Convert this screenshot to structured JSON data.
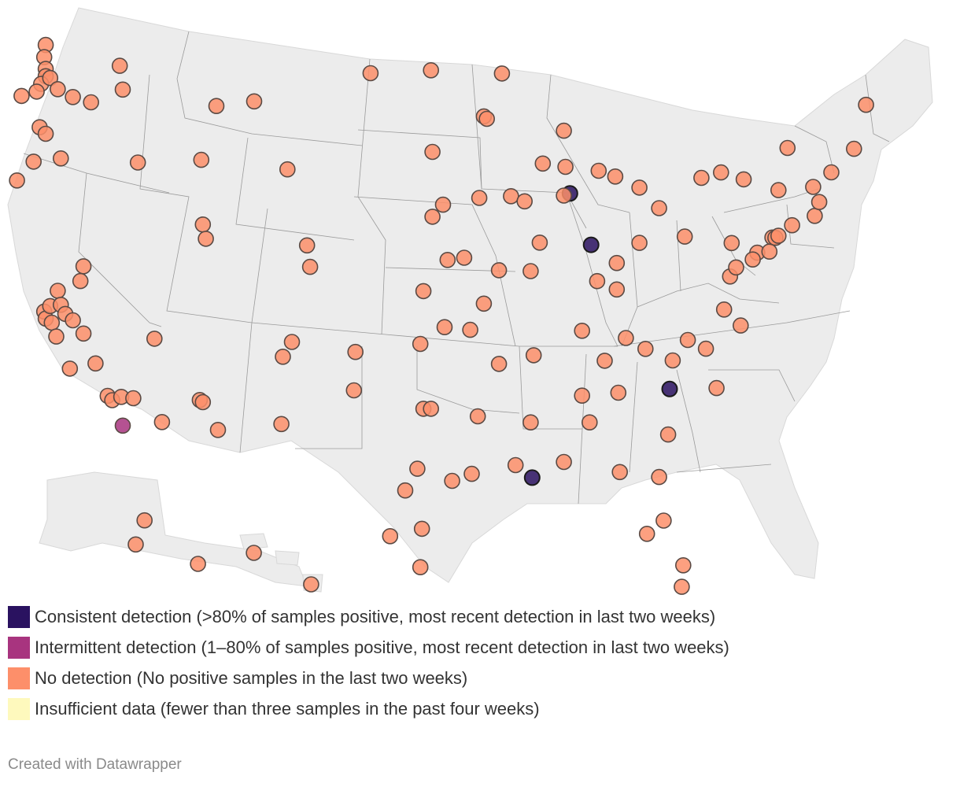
{
  "legend": [
    {
      "label": "Consistent detection (>80% of samples positive, most recent detection in last two weeks)",
      "color": "#2a1260"
    },
    {
      "label": "Intermittent detection (1–80% of samples positive, most recent detection in last two weeks)",
      "color": "#a8347f"
    },
    {
      "label": "No detection (No positive samples in the last two weeks)",
      "color": "#fd8f6a"
    },
    {
      "label": "Insufficient data (fewer than three samples in the past four weeks)",
      "color": "#fef9bd"
    }
  ],
  "credit": "Created with Datawrapper",
  "map": {
    "land_color": "#ececec",
    "border_color": "#9a9a9a",
    "sites": [
      {
        "lon": -122.3,
        "lat": 48.9,
        "s": "none"
      },
      {
        "lon": -122.4,
        "lat": 48.4,
        "s": "none"
      },
      {
        "lon": -122.3,
        "lat": 47.9,
        "s": "none"
      },
      {
        "lon": -122.3,
        "lat": 47.6,
        "s": "none"
      },
      {
        "lon": -122.6,
        "lat": 47.3,
        "s": "none"
      },
      {
        "lon": -122.9,
        "lat": 47.0,
        "s": "none"
      },
      {
        "lon": -123.9,
        "lat": 46.9,
        "s": "none"
      },
      {
        "lon": -122.0,
        "lat": 47.5,
        "s": "none"
      },
      {
        "lon": -121.5,
        "lat": 47.0,
        "s": "none"
      },
      {
        "lon": -120.5,
        "lat": 46.6,
        "s": "none"
      },
      {
        "lon": -119.3,
        "lat": 46.3,
        "s": "none"
      },
      {
        "lon": -117.4,
        "lat": 47.7,
        "s": "none"
      },
      {
        "lon": -117.2,
        "lat": 46.7,
        "s": "none"
      },
      {
        "lon": -124.2,
        "lat": 43.4,
        "s": "none"
      },
      {
        "lon": -123.1,
        "lat": 44.1,
        "s": "none"
      },
      {
        "lon": -122.7,
        "lat": 45.5,
        "s": "none"
      },
      {
        "lon": -122.3,
        "lat": 45.2,
        "s": "none"
      },
      {
        "lon": -121.3,
        "lat": 44.1,
        "s": "none"
      },
      {
        "lon": -116.2,
        "lat": 43.6,
        "s": "none"
      },
      {
        "lon": -112.0,
        "lat": 43.5,
        "s": "none"
      },
      {
        "lon": -111.0,
        "lat": 45.7,
        "s": "none"
      },
      {
        "lon": -108.5,
        "lat": 45.8,
        "s": "none"
      },
      {
        "lon": -106.3,
        "lat": 42.9,
        "s": "none"
      },
      {
        "lon": -111.9,
        "lat": 40.8,
        "s": "none"
      },
      {
        "lon": -111.7,
        "lat": 40.2,
        "s": "none"
      },
      {
        "lon": -119.8,
        "lat": 39.5,
        "s": "none"
      },
      {
        "lon": -115.1,
        "lat": 36.2,
        "s": "none"
      },
      {
        "lon": -122.4,
        "lat": 37.8,
        "s": "none"
      },
      {
        "lon": -122.3,
        "lat": 37.5,
        "s": "none"
      },
      {
        "lon": -121.9,
        "lat": 37.3,
        "s": "none"
      },
      {
        "lon": -122.0,
        "lat": 38.0,
        "s": "none"
      },
      {
        "lon": -121.5,
        "lat": 38.6,
        "s": "none"
      },
      {
        "lon": -121.3,
        "lat": 38.0,
        "s": "none"
      },
      {
        "lon": -120.0,
        "lat": 38.9,
        "s": "none"
      },
      {
        "lon": -121.0,
        "lat": 37.6,
        "s": "none"
      },
      {
        "lon": -120.5,
        "lat": 37.3,
        "s": "none"
      },
      {
        "lon": -119.8,
        "lat": 36.7,
        "s": "none"
      },
      {
        "lon": -121.6,
        "lat": 36.7,
        "s": "none"
      },
      {
        "lon": -120.7,
        "lat": 35.3,
        "s": "none"
      },
      {
        "lon": -119.0,
        "lat": 35.4,
        "s": "none"
      },
      {
        "lon": -118.2,
        "lat": 34.0,
        "s": "none"
      },
      {
        "lon": -117.9,
        "lat": 33.8,
        "s": "none"
      },
      {
        "lon": -117.3,
        "lat": 33.9,
        "s": "none"
      },
      {
        "lon": -116.5,
        "lat": 33.8,
        "s": "none"
      },
      {
        "lon": -117.2,
        "lat": 32.7,
        "s": "intermittent"
      },
      {
        "lon": -114.6,
        "lat": 32.7,
        "s": "none"
      },
      {
        "lon": -112.1,
        "lat": 33.5,
        "s": "none"
      },
      {
        "lon": -111.9,
        "lat": 33.4,
        "s": "none"
      },
      {
        "lon": -110.9,
        "lat": 32.2,
        "s": "none"
      },
      {
        "lon": -106.6,
        "lat": 35.1,
        "s": "none"
      },
      {
        "lon": -106.0,
        "lat": 35.7,
        "s": "none"
      },
      {
        "lon": -106.7,
        "lat": 32.3,
        "s": "none"
      },
      {
        "lon": -104.8,
        "lat": 38.8,
        "s": "none"
      },
      {
        "lon": -105.0,
        "lat": 39.7,
        "s": "none"
      },
      {
        "lon": -101.8,
        "lat": 35.2,
        "s": "none"
      },
      {
        "lon": -101.9,
        "lat": 33.6,
        "s": "none"
      },
      {
        "lon": -97.3,
        "lat": 32.8,
        "s": "none"
      },
      {
        "lon": -96.8,
        "lat": 32.8,
        "s": "none"
      },
      {
        "lon": -97.7,
        "lat": 30.3,
        "s": "none"
      },
      {
        "lon": -98.5,
        "lat": 29.4,
        "s": "none"
      },
      {
        "lon": -95.4,
        "lat": 29.8,
        "s": "none"
      },
      {
        "lon": -94.1,
        "lat": 30.1,
        "s": "none"
      },
      {
        "lon": -97.4,
        "lat": 27.8,
        "s": "none"
      },
      {
        "lon": -99.5,
        "lat": 27.5,
        "s": "none"
      },
      {
        "lon": -97.5,
        "lat": 26.2,
        "s": "none"
      },
      {
        "lon": -97.5,
        "lat": 35.5,
        "s": "none"
      },
      {
        "lon": -95.9,
        "lat": 36.2,
        "s": "none"
      },
      {
        "lon": -97.3,
        "lat": 37.7,
        "s": "none"
      },
      {
        "lon": -95.7,
        "lat": 39.0,
        "s": "none"
      },
      {
        "lon": -94.6,
        "lat": 39.1,
        "s": "none"
      },
      {
        "lon": -96.0,
        "lat": 41.3,
        "s": "none"
      },
      {
        "lon": -96.7,
        "lat": 40.8,
        "s": "none"
      },
      {
        "lon": -96.7,
        "lat": 43.5,
        "s": "none"
      },
      {
        "lon": -100.8,
        "lat": 46.8,
        "s": "none"
      },
      {
        "lon": -96.8,
        "lat": 46.9,
        "s": "none"
      },
      {
        "lon": -93.3,
        "lat": 45.0,
        "s": "none"
      },
      {
        "lon": -93.1,
        "lat": 44.9,
        "s": "none"
      },
      {
        "lon": -92.1,
        "lat": 46.8,
        "s": "none"
      },
      {
        "lon": -93.6,
        "lat": 41.6,
        "s": "none"
      },
      {
        "lon": -91.5,
        "lat": 41.7,
        "s": "none"
      },
      {
        "lon": -90.6,
        "lat": 41.5,
        "s": "none"
      },
      {
        "lon": -89.4,
        "lat": 43.1,
        "s": "none"
      },
      {
        "lon": -87.9,
        "lat": 43.0,
        "s": "none"
      },
      {
        "lon": -88.0,
        "lat": 44.5,
        "s": "none"
      },
      {
        "lon": -87.6,
        "lat": 41.9,
        "s": "consistent"
      },
      {
        "lon": -88.0,
        "lat": 41.8,
        "s": "none"
      },
      {
        "lon": -89.6,
        "lat": 39.8,
        "s": "none"
      },
      {
        "lon": -90.2,
        "lat": 38.6,
        "s": "none"
      },
      {
        "lon": -92.3,
        "lat": 38.6,
        "s": "none"
      },
      {
        "lon": -93.3,
        "lat": 37.2,
        "s": "none"
      },
      {
        "lon": -92.3,
        "lat": 34.7,
        "s": "none"
      },
      {
        "lon": -94.2,
        "lat": 36.1,
        "s": "none"
      },
      {
        "lon": -90.0,
        "lat": 35.1,
        "s": "none"
      },
      {
        "lon": -91.2,
        "lat": 30.5,
        "s": "none"
      },
      {
        "lon": -90.1,
        "lat": 30.0,
        "s": "consistent"
      },
      {
        "lon": -93.7,
        "lat": 32.5,
        "s": "none"
      },
      {
        "lon": -90.2,
        "lat": 32.3,
        "s": "none"
      },
      {
        "lon": -88.0,
        "lat": 30.7,
        "s": "none"
      },
      {
        "lon": -86.8,
        "lat": 33.5,
        "s": "none"
      },
      {
        "lon": -86.3,
        "lat": 32.4,
        "s": "none"
      },
      {
        "lon": -84.4,
        "lat": 33.7,
        "s": "none"
      },
      {
        "lon": -84.3,
        "lat": 30.4,
        "s": "none"
      },
      {
        "lon": -82.5,
        "lat": 27.9,
        "s": "none"
      },
      {
        "lon": -81.4,
        "lat": 28.5,
        "s": "none"
      },
      {
        "lon": -80.2,
        "lat": 25.8,
        "s": "none"
      },
      {
        "lon": -80.1,
        "lat": 26.7,
        "s": "none"
      },
      {
        "lon": -81.7,
        "lat": 30.3,
        "s": "none"
      },
      {
        "lon": -81.1,
        "lat": 32.1,
        "s": "none"
      },
      {
        "lon": -81.0,
        "lat": 34.0,
        "s": "consistent"
      },
      {
        "lon": -80.8,
        "lat": 35.2,
        "s": "none"
      },
      {
        "lon": -78.6,
        "lat": 35.8,
        "s": "none"
      },
      {
        "lon": -79.8,
        "lat": 36.1,
        "s": "none"
      },
      {
        "lon": -77.9,
        "lat": 34.2,
        "s": "none"
      },
      {
        "lon": -76.3,
        "lat": 36.9,
        "s": "none"
      },
      {
        "lon": -77.4,
        "lat": 37.5,
        "s": "none"
      },
      {
        "lon": -77.0,
        "lat": 38.9,
        "s": "none"
      },
      {
        "lon": -76.6,
        "lat": 39.3,
        "s": "none"
      },
      {
        "lon": -75.2,
        "lat": 40.0,
        "s": "none"
      },
      {
        "lon": -74.2,
        "lat": 40.7,
        "s": "none"
      },
      {
        "lon": -74.0,
        "lat": 40.7,
        "s": "none"
      },
      {
        "lon": -73.8,
        "lat": 40.8,
        "s": "none"
      },
      {
        "lon": -72.9,
        "lat": 41.3,
        "s": "none"
      },
      {
        "lon": -71.4,
        "lat": 41.8,
        "s": "none"
      },
      {
        "lon": -71.1,
        "lat": 42.4,
        "s": "none"
      },
      {
        "lon": -70.3,
        "lat": 43.7,
        "s": "none"
      },
      {
        "lon": -68.8,
        "lat": 44.8,
        "s": "none"
      },
      {
        "lon": -68.0,
        "lat": 46.7,
        "s": "none"
      },
      {
        "lon": -73.2,
        "lat": 44.5,
        "s": "none"
      },
      {
        "lon": -71.5,
        "lat": 43.0,
        "s": "none"
      },
      {
        "lon": -73.8,
        "lat": 42.7,
        "s": "none"
      },
      {
        "lon": -76.1,
        "lat": 43.0,
        "s": "none"
      },
      {
        "lon": -77.6,
        "lat": 43.2,
        "s": "none"
      },
      {
        "lon": -78.9,
        "lat": 42.9,
        "s": "none"
      },
      {
        "lon": -80.0,
        "lat": 40.4,
        "s": "none"
      },
      {
        "lon": -81.7,
        "lat": 41.5,
        "s": "none"
      },
      {
        "lon": -83.0,
        "lat": 40.0,
        "s": "none"
      },
      {
        "lon": -84.5,
        "lat": 39.1,
        "s": "none"
      },
      {
        "lon": -83.0,
        "lat": 42.3,
        "s": "none"
      },
      {
        "lon": -85.7,
        "lat": 42.9,
        "s": "none"
      },
      {
        "lon": -84.6,
        "lat": 42.7,
        "s": "none"
      },
      {
        "lon": -86.2,
        "lat": 39.8,
        "s": "consistent"
      },
      {
        "lon": -85.8,
        "lat": 38.3,
        "s": "none"
      },
      {
        "lon": -84.5,
        "lat": 38.0,
        "s": "none"
      },
      {
        "lon": -86.8,
        "lat": 36.2,
        "s": "none"
      },
      {
        "lon": -85.3,
        "lat": 35.0,
        "s": "none"
      },
      {
        "lon": -83.9,
        "lat": 36.0,
        "s": "none"
      },
      {
        "lon": -82.6,
        "lat": 35.6,
        "s": "none"
      },
      {
        "lon": -75.5,
        "lat": 39.7,
        "s": "none"
      },
      {
        "lon": -74.4,
        "lat": 40.1,
        "s": "none"
      },
      {
        "lon": -76.9,
        "lat": 40.3,
        "s": "none"
      },
      {
        "lon": -157.9,
        "lat": 21.3,
        "s": "none"
      },
      {
        "lon": -155.1,
        "lat": 19.7,
        "s": "none"
      },
      {
        "lon": -149.9,
        "lat": 61.2,
        "s": "none"
      },
      {
        "lon": -147.7,
        "lat": 64.8,
        "s": "none"
      },
      {
        "lon": -134.4,
        "lat": 58.3,
        "s": "none"
      }
    ]
  }
}
